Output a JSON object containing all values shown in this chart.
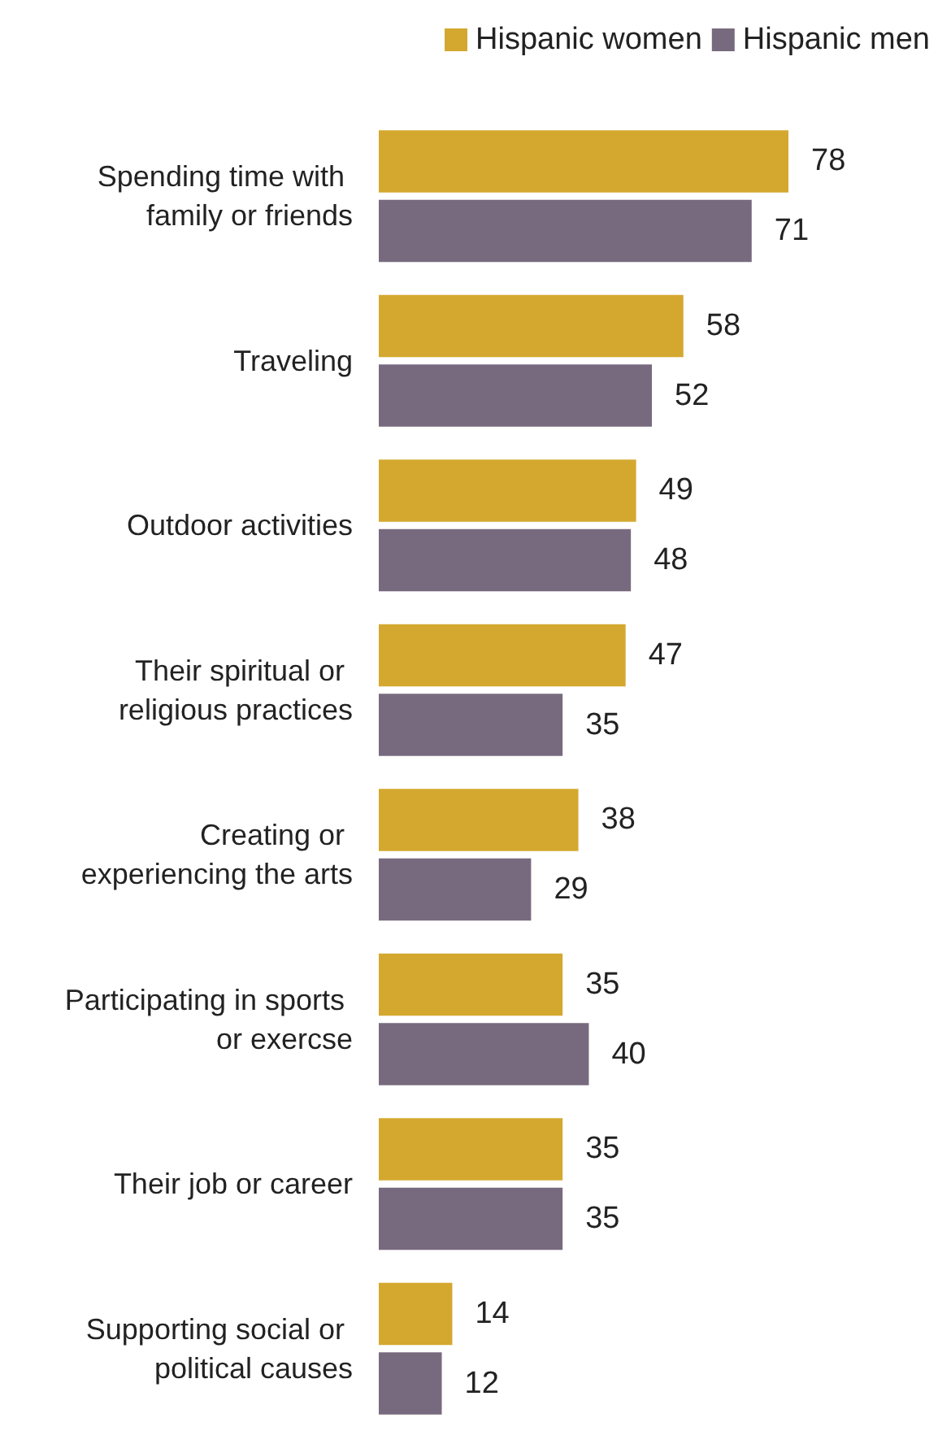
{
  "chart_data": {
    "type": "bar",
    "orientation": "horizontal",
    "categories": [
      "Spending time with family or friends",
      "Traveling",
      "Outdoor activities",
      "Their spiritual or religious practices",
      "Creating or experiencing the arts",
      "Participating in sports or exercse",
      "Their job or career",
      "Supporting social or political causes"
    ],
    "series": [
      {
        "name": "Hispanic women",
        "color": "#d4a82f",
        "values": [
          78,
          58,
          49,
          47,
          38,
          35,
          35,
          14
        ]
      },
      {
        "name": "Hispanic men",
        "color": "#786a7e",
        "values": [
          71,
          52,
          48,
          35,
          29,
          40,
          35,
          12
        ]
      }
    ],
    "data_labels": true,
    "legend": "top right"
  }
}
